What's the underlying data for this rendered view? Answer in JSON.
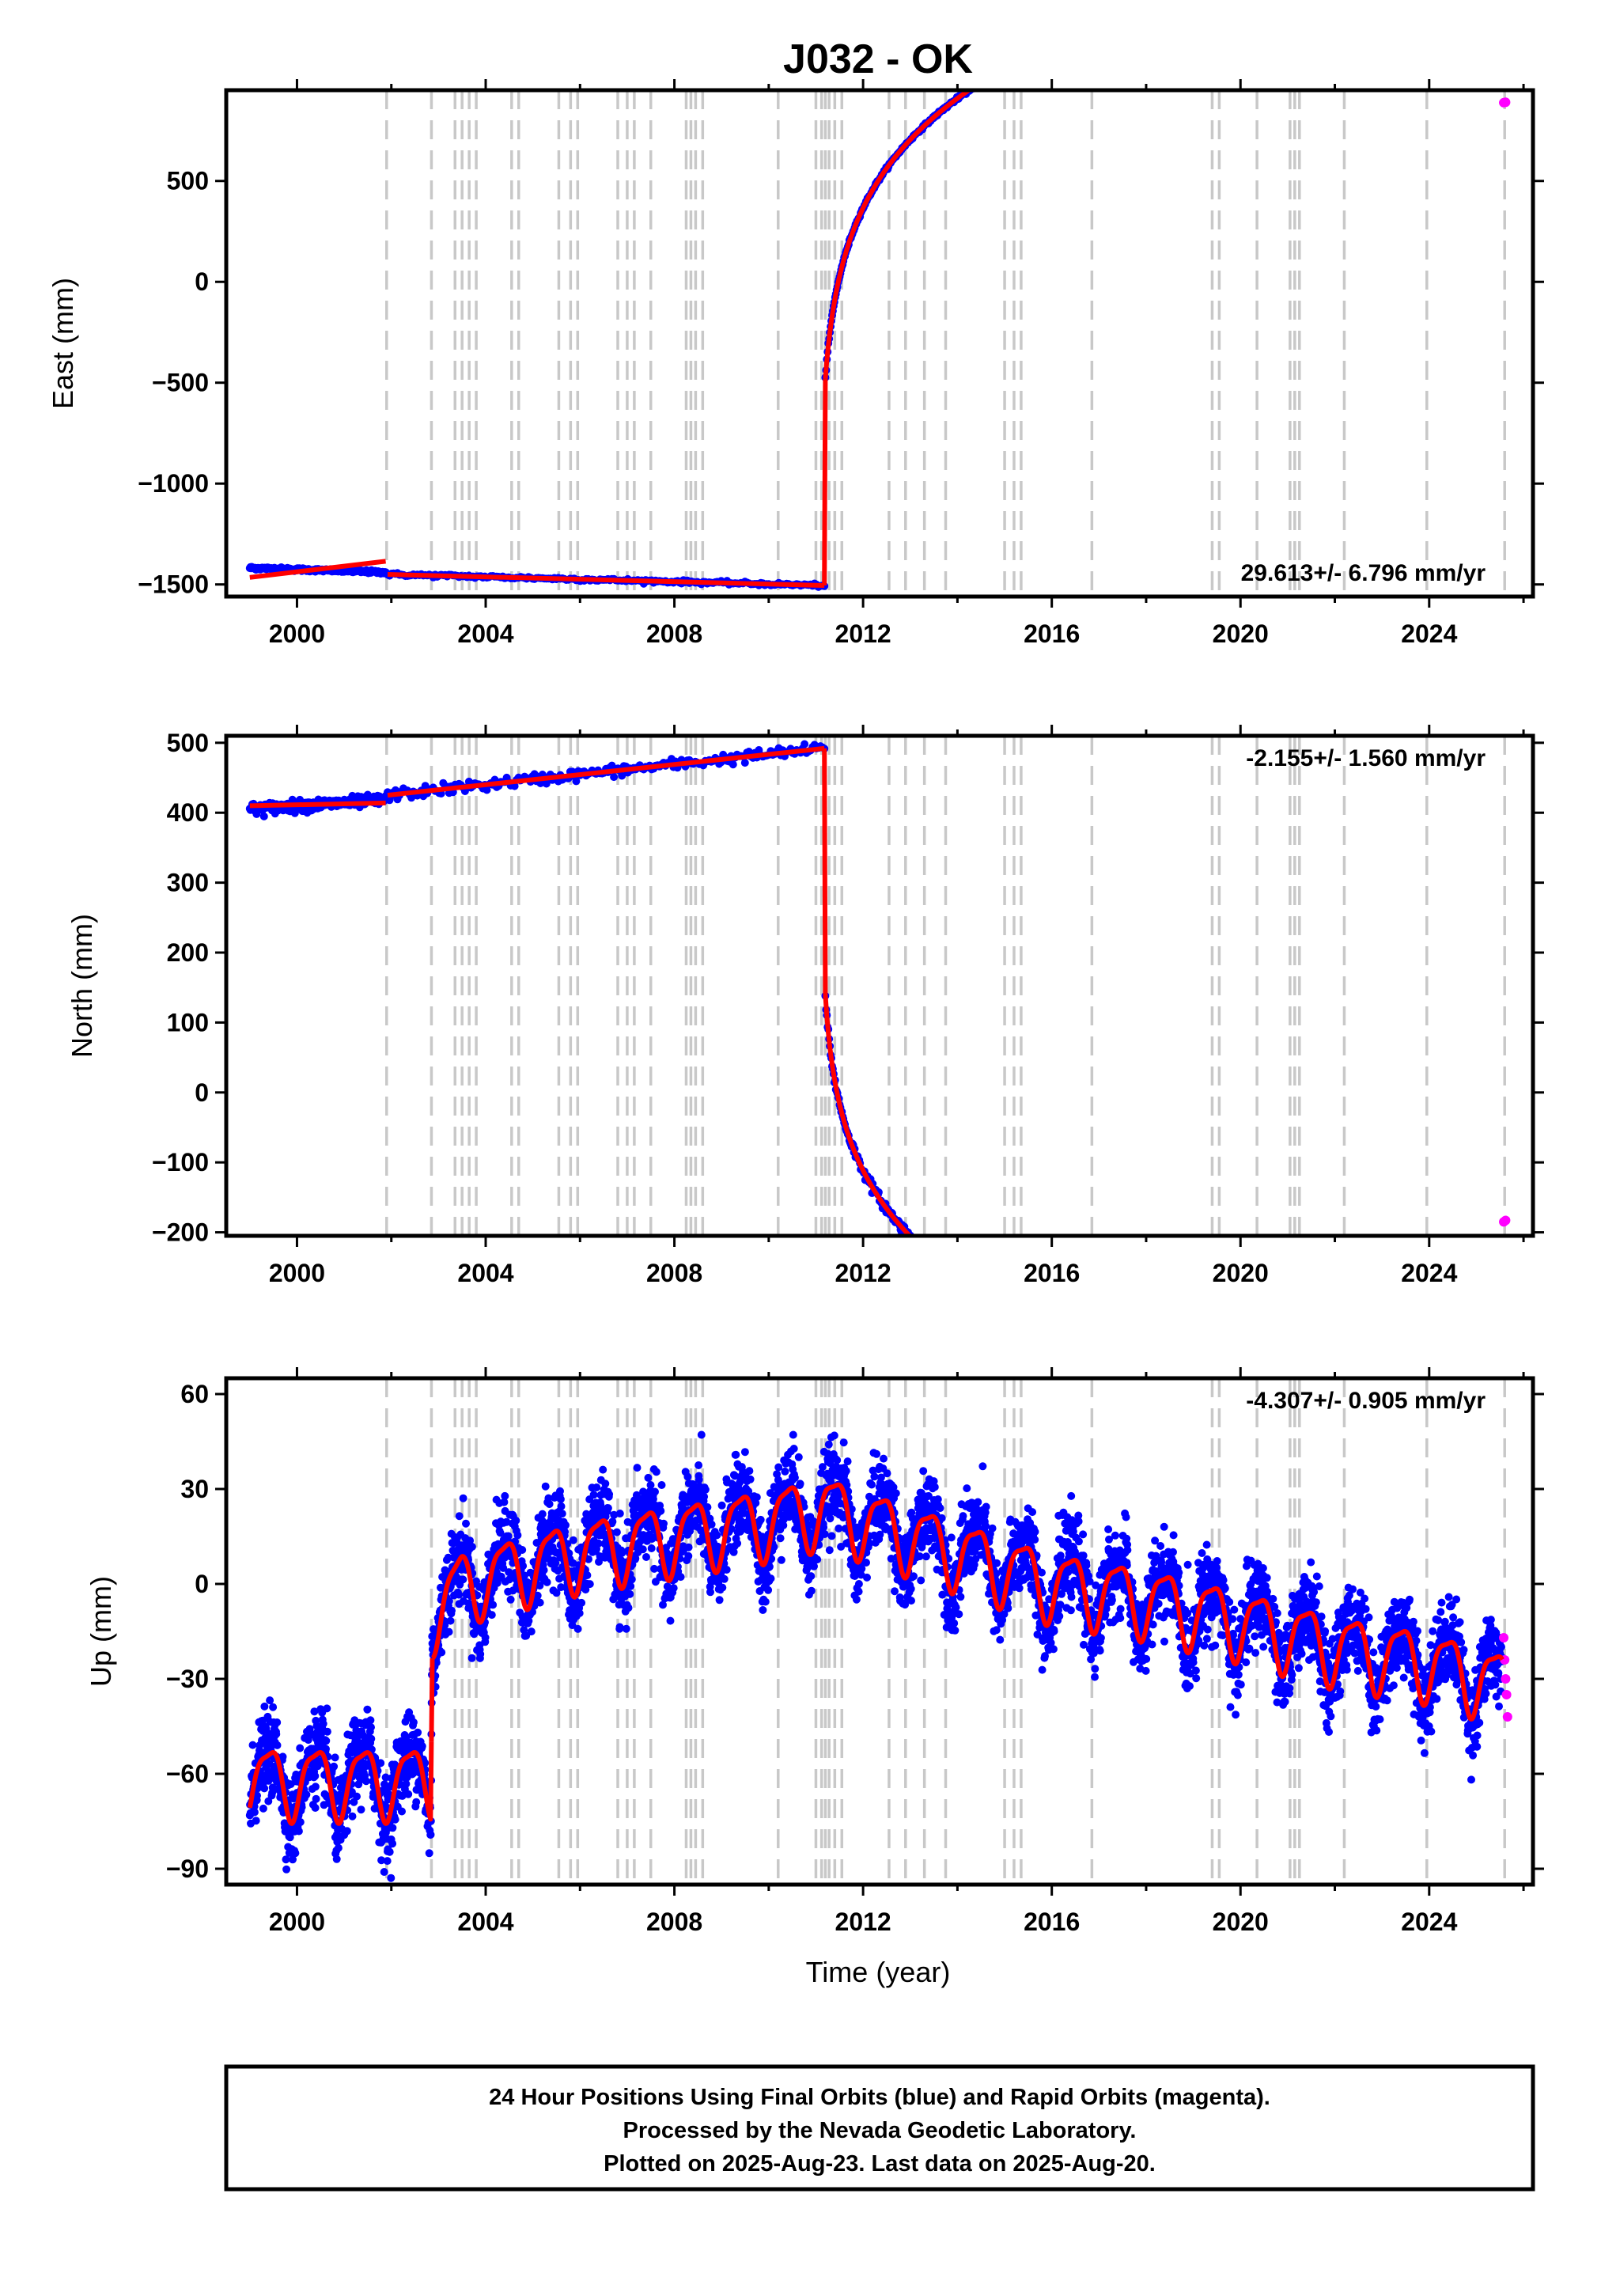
{
  "title": "J032 - OK",
  "colors": {
    "final_orbits": "#0000ff",
    "rapid_orbits": "#ff00ff",
    "model": "#ff0000",
    "event_lines": "#c8c8c8",
    "axes": "#000000"
  },
  "event_years": [
    2001.9,
    2002.85,
    2003.35,
    2003.5,
    2003.65,
    2003.8,
    2004.55,
    2004.7,
    2005.55,
    2005.8,
    2005.95,
    2006.8,
    2007.0,
    2007.15,
    2007.5,
    2008.25,
    2008.35,
    2008.45,
    2008.6,
    2010.2,
    2011.0,
    2011.12,
    2011.2,
    2011.28,
    2011.4,
    2011.55,
    2012.55,
    2012.9,
    2013.3,
    2013.75,
    2015.0,
    2015.2,
    2015.35,
    2016.85,
    2019.4,
    2019.55,
    2020.35,
    2021.05,
    2021.15,
    2021.25,
    2022.2,
    2023.95,
    2025.6
  ],
  "chart_data": [
    {
      "type": "scatter",
      "name": "east",
      "ylabel": "East (mm)",
      "xlim": [
        1998.5,
        2026.2
      ],
      "ylim": [
        -1560,
        950
      ],
      "yticks": [
        -1500,
        -1000,
        -500,
        0,
        500
      ],
      "xticks": [
        2000,
        2004,
        2008,
        2012,
        2016,
        2020,
        2024
      ],
      "show_xtick_labels": true,
      "rate_label": "29.613+/- 6.796 mm/yr",
      "rate_position": "bottom-right",
      "segments": [
        {
          "x": [
            1999.0,
            2001.88
          ],
          "y": [
            -1418,
            -1440
          ],
          "model": [
            -1465,
            -1385
          ]
        },
        {
          "x": [
            2001.92,
            2011.18
          ],
          "y": [
            -1450,
            -1505
          ],
          "model": [
            -1450,
            -1505
          ]
        }
      ],
      "postseismic": {
        "x0": 2011.2,
        "x1": 2025.55,
        "y0": -480,
        "amp": 430,
        "tau": 0.55,
        "rate": 26
      },
      "rapid_points": {
        "x": [
          2025.58,
          2025.62
        ],
        "y": [
          888,
          890
        ]
      }
    },
    {
      "type": "scatter",
      "name": "north",
      "ylabel": "North (mm)",
      "xlim": [
        1998.5,
        2026.2
      ],
      "ylim": [
        -205,
        510
      ],
      "yticks": [
        -200,
        -100,
        0,
        100,
        200,
        300,
        400,
        500
      ],
      "xticks": [
        2000,
        2004,
        2008,
        2012,
        2016,
        2020,
        2024
      ],
      "show_xtick_labels": true,
      "rate_label": "-2.155+/- 1.560 mm/yr",
      "rate_position": "top-right",
      "segments": [
        {
          "x": [
            1999.0,
            2001.88
          ],
          "y": [
            405,
            418
          ],
          "model": [
            410,
            414
          ]
        },
        {
          "x": [
            2001.92,
            2011.18
          ],
          "y": [
            425,
            492
          ],
          "model": [
            425,
            492
          ]
        }
      ],
      "postseismic": {
        "x0": 2011.2,
        "x1": 2025.55,
        "y0": 140,
        "amp": -110,
        "tau": 0.4,
        "rate": -12.3
      },
      "rapid_points": {
        "x": [
          2025.58,
          2025.62
        ],
        "y": [
          -185,
          -183
        ]
      }
    },
    {
      "type": "scatter",
      "name": "up",
      "ylabel": "Up (mm)",
      "xlabel": "Time (year)",
      "xlim": [
        1998.5,
        2026.2
      ],
      "ylim": [
        -95,
        65
      ],
      "yticks": [
        -90,
        -60,
        -30,
        0,
        30,
        60
      ],
      "xticks": [
        2000,
        2004,
        2008,
        2012,
        2016,
        2020,
        2024
      ],
      "show_xtick_labels": true,
      "rate_label": "-4.307+/- 0.905 mm/yr",
      "rate_position": "top-right",
      "seasonal_amplitude": 12,
      "offset_year": 2002.85,
      "trend_knots": {
        "x": [
          1999.0,
          2002.84,
          2002.86,
          2003.5,
          2006.0,
          2008.0,
          2010.0,
          2011.2,
          2012.0,
          2014.0,
          2016.0,
          2018.0,
          2020.0,
          2022.0,
          2024.0,
          2025.55
        ],
        "y": [
          -62,
          -62,
          -10,
          0,
          10,
          15,
          20,
          24,
          20,
          10,
          0,
          -5,
          -12,
          -20,
          -25,
          -32
        ]
      },
      "rapid_points": {
        "x": [
          2025.58,
          2025.6,
          2025.62,
          2025.64,
          2025.66
        ],
        "y": [
          -17,
          -24,
          -30,
          -35,
          -42
        ]
      }
    }
  ],
  "footer": {
    "line1": "24 Hour Positions Using Final Orbits (blue) and Rapid Orbits (magenta).",
    "line2": "Processed by the Nevada Geodetic Laboratory.",
    "line3": "Plotted on 2025-Aug-23. Last data on 2025-Aug-20."
  }
}
